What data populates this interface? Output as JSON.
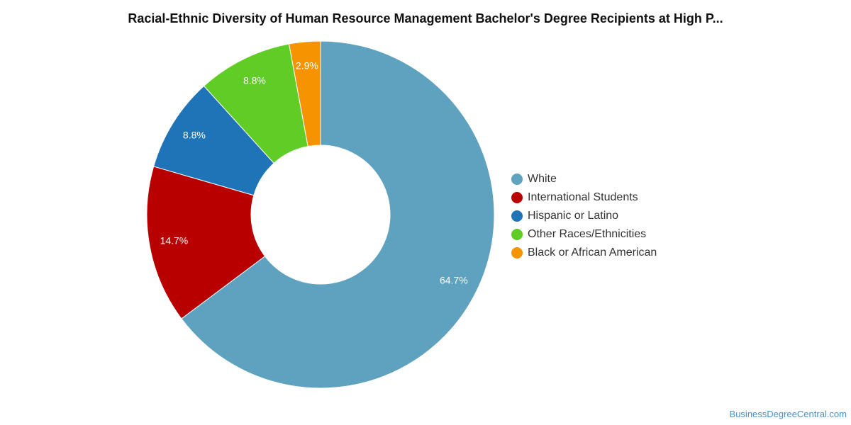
{
  "chart_data": {
    "type": "pie",
    "variant": "donut",
    "title": "Racial-Ethnic Diversity of Human Resource Management Bachelor's Degree Recipients at High P...",
    "legend_position": "right",
    "slices": [
      {
        "name": "White",
        "value": 64.7,
        "label": "64.7%",
        "color": "#5ea2bf"
      },
      {
        "name": "International Students",
        "value": 14.7,
        "label": "14.7%",
        "color": "#b90000"
      },
      {
        "name": "Hispanic or Latino",
        "value": 8.8,
        "label": "8.8%",
        "color": "#1f73b7"
      },
      {
        "name": "Other Races/Ethnicities",
        "value": 8.8,
        "label": "8.8%",
        "color": "#5fcd25"
      },
      {
        "name": "Black or African American",
        "value": 2.9,
        "label": "2.9%",
        "color": "#f59300"
      }
    ]
  },
  "footer": {
    "source": "BusinessDegreeCentral.com"
  }
}
